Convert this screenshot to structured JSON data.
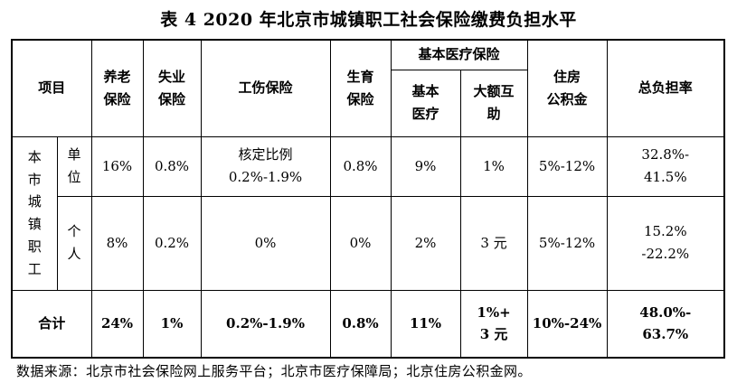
{
  "title": "表 4 2020 年北京市城镇职工社会保险缴费负担水平",
  "headers": {
    "item": "项目",
    "pension": [
      "养老",
      "保险"
    ],
    "unemployment": [
      "失业",
      "保险"
    ],
    "injury": "工伤保险",
    "maternity": [
      "生育",
      "保险"
    ],
    "medical_group": "基本医疗保险",
    "medical_basic": [
      "基本",
      "医疗"
    ],
    "medical_major": [
      "大额互",
      "助"
    ],
    "housing": [
      "住房",
      "公积金"
    ],
    "total": "总负担率"
  },
  "row_group": [
    "本",
    "市",
    "城",
    "镇",
    "职",
    "工"
  ],
  "rows": [
    {
      "label": [
        "单",
        "位"
      ],
      "pension": "16%",
      "unemployment": "0.8%",
      "injury": [
        "核定比例",
        "0.2%-1.9%"
      ],
      "maternity": "0.8%",
      "medical_basic": "9%",
      "medical_major": "1%",
      "housing": "5%-12%",
      "total": [
        "32.8%-",
        "41.5%"
      ]
    },
    {
      "label": [
        "个",
        "人"
      ],
      "pension": "8%",
      "unemployment": "0.2%",
      "injury": "0%",
      "maternity": "0%",
      "medical_basic": "2%",
      "medical_major": "3 元",
      "housing": "5%-12%",
      "total": [
        "15.2%",
        "-22.2%"
      ]
    }
  ],
  "total_row": {
    "label": "合计",
    "pension": "24%",
    "unemployment": "1%",
    "injury": "0.2%-1.9%",
    "maternity": "0.8%",
    "medical_basic": "11%",
    "medical_major": [
      "1%+",
      "3 元"
    ],
    "housing": "10%-24%",
    "total": [
      "48.0%-",
      "63.7%"
    ]
  },
  "source_note": "数据来源：北京市社会保险网上服务平台；北京市医疗保障局；北京住房公积金网。"
}
